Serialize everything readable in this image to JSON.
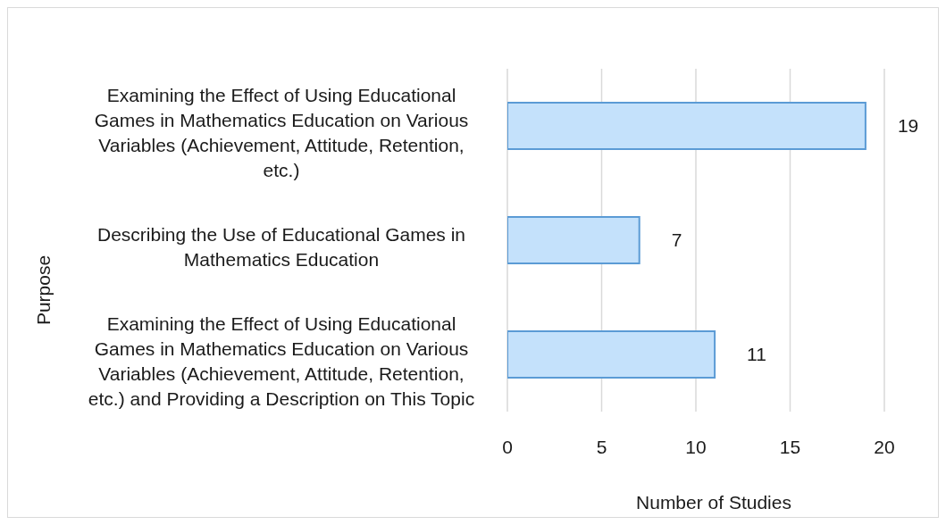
{
  "chart_data": {
    "type": "bar",
    "orientation": "horizontal",
    "categories": [
      "Examining the Effect of Using Educational Games in Mathematics Education on Various Variables (Achievement, Attitude, Retention, etc.)",
      "Describing the Use of Educational Games in Mathematics Education",
      "Examining the Effect of Using Educational Games in Mathematics Education on Various Variables (Achievement, Attitude, Retention, etc.) and Providing a Description on This Topic"
    ],
    "values": [
      19,
      7,
      11
    ],
    "color": "#c4e1fb",
    "xlabel": "Number of Studies",
    "ylabel": "Purpose",
    "xlim": [
      0,
      20
    ],
    "xticks": [
      0,
      5,
      10,
      15,
      20
    ],
    "grid": "x",
    "data_labels": true
  }
}
